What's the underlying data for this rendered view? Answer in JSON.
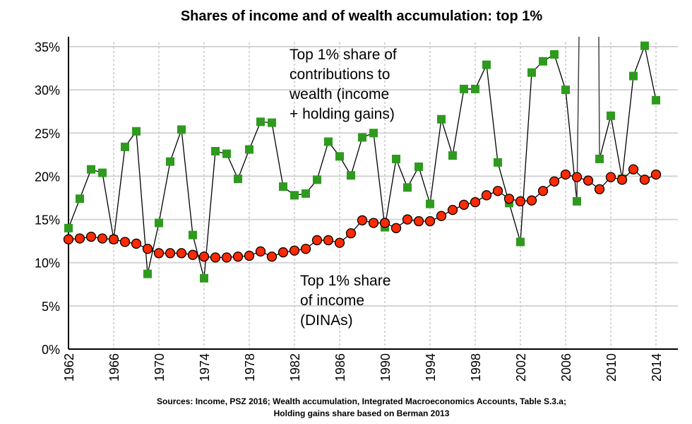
{
  "chart_data": {
    "type": "line",
    "title": "Shares of income and of wealth accumulation: top 1%",
    "xlabel": "",
    "ylabel": "",
    "xlim": [
      1962,
      2014
    ],
    "ylim": [
      0,
      35
    ],
    "y_ticks": [
      "0%",
      "5%",
      "10%",
      "15%",
      "20%",
      "25%",
      "30%",
      "35%"
    ],
    "y_tick_values": [
      0,
      5,
      10,
      15,
      20,
      25,
      30,
      35
    ],
    "x_ticks": [
      "1962",
      "1966",
      "1970",
      "1974",
      "1978",
      "1982",
      "1986",
      "1990",
      "1994",
      "1998",
      "2002",
      "2006",
      "2010",
      "2014"
    ],
    "x_tick_values": [
      1962,
      1966,
      1970,
      1974,
      1978,
      1982,
      1986,
      1990,
      1994,
      1998,
      2002,
      2006,
      2010,
      2014
    ],
    "grid": true,
    "x": [
      1962,
      1963,
      1964,
      1965,
      1966,
      1967,
      1968,
      1969,
      1970,
      1971,
      1972,
      1973,
      1974,
      1975,
      1976,
      1977,
      1978,
      1979,
      1980,
      1981,
      1982,
      1983,
      1984,
      1985,
      1986,
      1987,
      1988,
      1989,
      1990,
      1991,
      1992,
      1993,
      1994,
      1995,
      1996,
      1997,
      1998,
      1999,
      2000,
      2001,
      2002,
      2003,
      2004,
      2005,
      2006,
      2007,
      2008,
      2009,
      2010,
      2011,
      2012,
      2013,
      2014
    ],
    "series": [
      {
        "name": "Top 1% share of contributions to wealth (income + holding gains)",
        "color": "#2e9a1e",
        "marker": "square",
        "offscale_above_years": [
          2008
        ],
        "values": [
          14.0,
          17.4,
          20.8,
          20.4,
          12.7,
          23.4,
          25.2,
          8.7,
          14.6,
          21.7,
          25.4,
          13.2,
          8.2,
          22.9,
          22.6,
          19.7,
          23.1,
          26.3,
          26.2,
          18.8,
          17.8,
          18.0,
          19.6,
          24.0,
          22.3,
          20.1,
          24.5,
          25.0,
          14.1,
          22.0,
          18.7,
          21.1,
          16.8,
          26.6,
          22.4,
          30.1,
          30.1,
          32.9,
          21.6,
          16.9,
          12.4,
          32.0,
          33.3,
          34.1,
          30.0,
          17.1,
          null,
          22.0,
          27.0,
          19.7,
          31.6,
          35.1,
          28.8
        ]
      },
      {
        "name": "Top 1% share of income (DINAs)",
        "color": "#ff2a00",
        "marker": "circle",
        "values": [
          12.7,
          12.8,
          13.0,
          12.8,
          12.7,
          12.4,
          12.2,
          11.6,
          11.1,
          11.1,
          11.1,
          10.9,
          10.7,
          10.6,
          10.6,
          10.7,
          10.8,
          11.3,
          10.7,
          11.2,
          11.4,
          11.6,
          12.6,
          12.6,
          12.3,
          13.4,
          14.9,
          14.6,
          14.6,
          14.0,
          15.0,
          14.8,
          14.8,
          15.4,
          16.1,
          16.7,
          17.0,
          17.8,
          18.3,
          17.4,
          17.1,
          17.2,
          18.3,
          19.4,
          20.2,
          19.9,
          19.5,
          18.5,
          19.9,
          19.6,
          20.8,
          19.6,
          20.2
        ]
      }
    ],
    "annotations": {
      "wealth": [
        "Top 1% share of",
        "contributions to",
        "wealth (income",
        "+ holding gains)"
      ],
      "income": [
        "Top 1% share",
        "of income",
        "(DINAs)"
      ]
    },
    "source_lines": [
      "Sources: Income, PSZ 2016; Wealth accumulation, Integrated Macroeconomics Accounts, Table S.3.a;",
      "Holding gains share based on Berman 2013"
    ]
  }
}
